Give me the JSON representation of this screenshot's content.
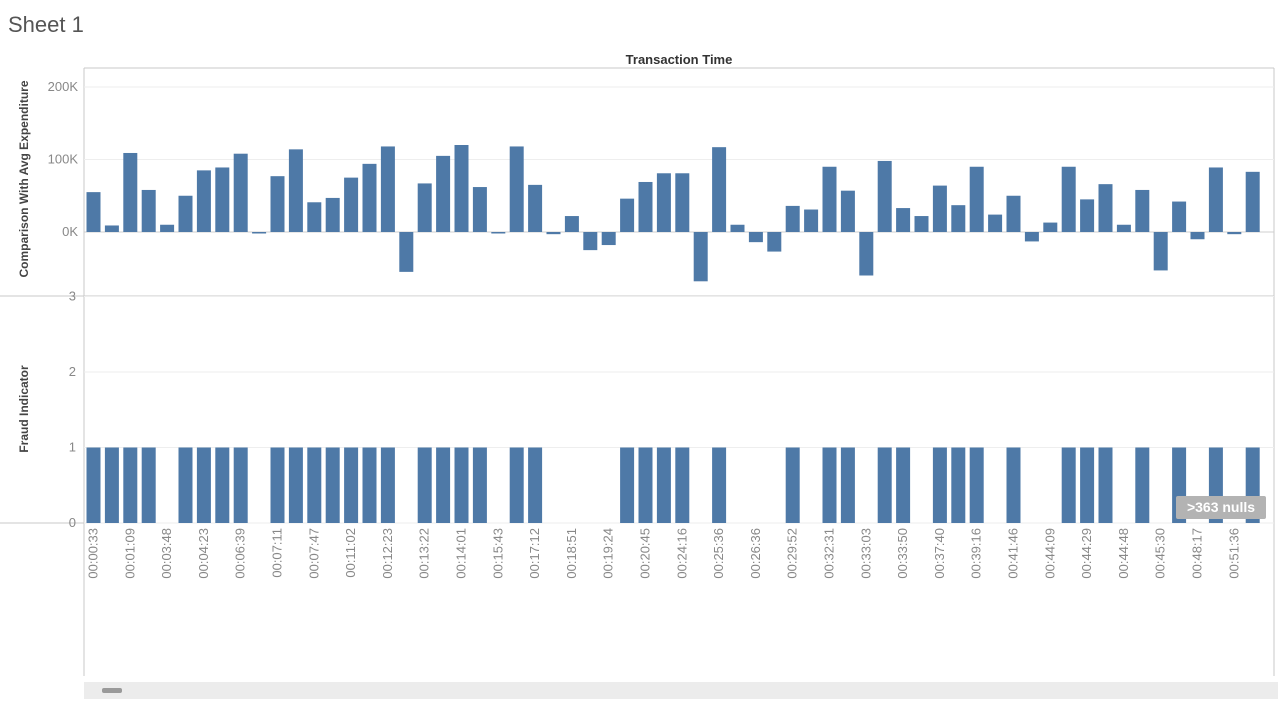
{
  "sheet": {
    "title": "Sheet 1"
  },
  "header": {
    "title": "Transaction Time"
  },
  "null_badge": ">363 nulls",
  "colors": {
    "bar": "#4e79a7",
    "grid": "#eeeeee",
    "axis": "#c8c8c8",
    "text": "#888888"
  },
  "chart_data": [
    {
      "type": "bar",
      "ylabel": "Comparison With Avg Expenditure",
      "xlabel": "Transaction Time",
      "ylim": [
        -90000,
        220000
      ],
      "yticks": [
        {
          "v": 0,
          "label": "0K"
        },
        {
          "v": 100000,
          "label": "100K"
        },
        {
          "v": 200000,
          "label": "200K"
        }
      ],
      "values": [
        55000,
        9000,
        109000,
        58000,
        10000,
        50000,
        85000,
        89000,
        108000,
        -2000,
        77000,
        114000,
        41000,
        47000,
        75000,
        94000,
        118000,
        -55000,
        67000,
        105000,
        120000,
        62000,
        -1000,
        118000,
        65000,
        -3000,
        22000,
        -25000,
        -18000,
        46000,
        69000,
        81000,
        81000,
        -68000,
        117000,
        10000,
        -14000,
        -27000,
        36000,
        31000,
        90000,
        57000,
        -60000,
        98000,
        33000,
        22000,
        64000,
        37000,
        90000,
        24000,
        50000,
        -13000,
        13000,
        90000,
        45000,
        66000,
        10000,
        58000,
        -53000,
        42000,
        -10000,
        89000,
        -3000,
        83000
      ]
    },
    {
      "type": "bar",
      "ylabel": "Fraud Indicator",
      "xlabel": "Transaction Time",
      "ylim": [
        0,
        3
      ],
      "yticks": [
        {
          "v": 0,
          "label": "0"
        },
        {
          "v": 1,
          "label": "1"
        },
        {
          "v": 2,
          "label": "2"
        },
        {
          "v": 3,
          "label": "3"
        }
      ],
      "values": [
        1,
        1,
        1,
        1,
        0,
        1,
        1,
        1,
        1,
        0,
        1,
        1,
        1,
        1,
        1,
        1,
        1,
        0,
        1,
        1,
        1,
        1,
        0,
        1,
        1,
        0,
        0,
        0,
        0,
        1,
        1,
        1,
        1,
        0,
        1,
        0,
        0,
        0,
        1,
        0,
        1,
        1,
        0,
        1,
        1,
        0,
        1,
        1,
        1,
        0,
        1,
        0,
        0,
        1,
        1,
        1,
        0,
        1,
        0,
        1,
        0,
        1,
        0,
        1
      ]
    }
  ],
  "x_tick_labels": [
    "00:00:33",
    "00:01:09",
    "00:03:48",
    "00:04:23",
    "00:06:39",
    "00:07:11",
    "00:07:47",
    "00:11:02",
    "00:12:23",
    "00:13:22",
    "00:14:01",
    "00:15:43",
    "00:17:12",
    "00:18:51",
    "00:19:24",
    "00:20:45",
    "00:24:16",
    "00:25:36",
    "00:26:36",
    "00:29:52",
    "00:32:31",
    "00:33:03",
    "00:33:50",
    "00:37:40",
    "00:39:16",
    "00:41:46",
    "00:44:09",
    "00:44:29",
    "00:44:48",
    "00:45:30",
    "00:48:17",
    "00:51:36"
  ]
}
